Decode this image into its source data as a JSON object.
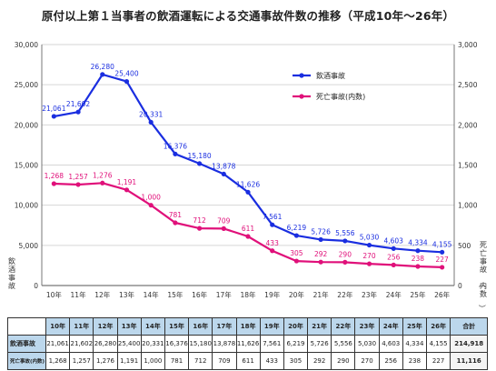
{
  "title": "原付以上第１当事者の飲酒運転による交通事故件数の推移（平成10年～26年）",
  "chart_data": {
    "type": "line",
    "categories": [
      "10年",
      "11年",
      "12年",
      "13年",
      "14年",
      "15年",
      "16年",
      "17年",
      "18年",
      "19年",
      "20年",
      "21年",
      "22年",
      "23年",
      "24年",
      "25年",
      "26年"
    ],
    "y_left": {
      "label": "飲酒事故",
      "min": 0,
      "max": 30000,
      "ticks": [
        "0",
        "5,000",
        "10,000",
        "15,000",
        "20,000",
        "25,000",
        "30,000"
      ]
    },
    "y_right": {
      "label": "死亡事故（内数）",
      "min": 0,
      "max": 3000,
      "ticks": [
        "0",
        "500",
        "1,000",
        "1,500",
        "2,000",
        "2,500",
        "3,000"
      ]
    },
    "grid": true,
    "legend_position": "top-right",
    "series": [
      {
        "name": "飲酒事故",
        "axis": "left",
        "color": "#1a2ee0",
        "values": [
          21061,
          21602,
          26280,
          25400,
          20331,
          16376,
          15180,
          13878,
          11626,
          7561,
          6219,
          5726,
          5556,
          5030,
          4603,
          4334,
          4155
        ],
        "labels": [
          "21,061",
          "21,602",
          "26,280",
          "25,400",
          "20,331",
          "16,376",
          "15,180",
          "13,878",
          "11,626",
          "7,561",
          "6,219",
          "5,726",
          "5,556",
          "5,030",
          "4,603",
          "4,334",
          "4,155"
        ]
      },
      {
        "name": "死亡事故(内数)",
        "axis": "right",
        "color": "#e0107a",
        "values": [
          1268,
          1257,
          1276,
          1191,
          1000,
          781,
          712,
          709,
          611,
          433,
          305,
          292,
          290,
          270,
          256,
          238,
          227
        ],
        "labels": [
          "1,268",
          "1,257",
          "1,276",
          "1,191",
          "1,000",
          "781",
          "712",
          "709",
          "611",
          "433",
          "305",
          "292",
          "290",
          "270",
          "256",
          "238",
          "227"
        ]
      }
    ]
  },
  "table": {
    "total_header": "合計",
    "rows": [
      {
        "label": "飲酒事故",
        "cells": [
          "21,061",
          "21,602",
          "26,280",
          "25,400",
          "20,331",
          "16,376",
          "15,180",
          "13,878",
          "11,626",
          "7,561",
          "6,219",
          "5,726",
          "5,556",
          "5,030",
          "4,603",
          "4,334",
          "4,155"
        ],
        "total": "214,918"
      },
      {
        "label": "死亡事故(内数)",
        "cells": [
          "1,268",
          "1,257",
          "1,276",
          "1,191",
          "1,000",
          "781",
          "712",
          "709",
          "611",
          "433",
          "305",
          "292",
          "290",
          "270",
          "256",
          "238",
          "227"
        ],
        "total": "11,116"
      }
    ]
  }
}
